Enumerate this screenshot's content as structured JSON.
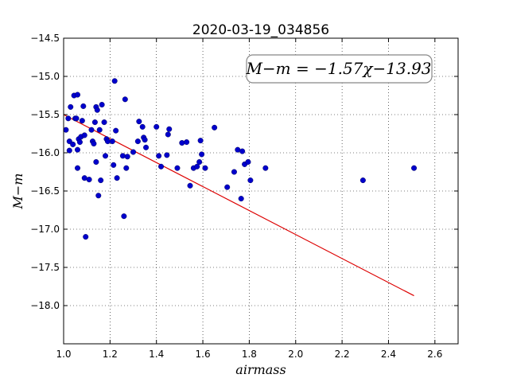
{
  "chart_data": {
    "type": "scatter",
    "title": "2020-03-19_034856",
    "xlabel": "airmass",
    "ylabel": "M−m",
    "annotation": "M−m = −1.57χ−13.93",
    "xlim": [
      1.0,
      2.7
    ],
    "ylim": [
      -18.5,
      -14.5
    ],
    "y_inverted": true,
    "grid": true,
    "x_ticks": [
      1.0,
      1.2,
      1.4,
      1.6,
      1.8,
      2.0,
      2.2,
      2.4,
      2.6
    ],
    "x_tick_labels": [
      "1.0",
      "1.2",
      "1.4",
      "1.6",
      "1.8",
      "2.0",
      "2.2",
      "2.4",
      "2.6"
    ],
    "y_ticks": [
      -14.5,
      -15.0,
      -15.5,
      -16.0,
      -16.5,
      -17.0,
      -17.5,
      -18.0
    ],
    "y_tick_labels": [
      "−14.5",
      "−15.0",
      "−15.5",
      "−16.0",
      "−16.5",
      "−17.0",
      "−17.5",
      "−18.0"
    ],
    "point_color": "#0000cc",
    "fit_color": "#dd0000",
    "fit": {
      "slope": -1.57,
      "intercept": -13.93,
      "x_range": [
        1.0,
        2.51
      ]
    },
    "points": [
      [
        1.01,
        -15.7
      ],
      [
        1.02,
        -15.55
      ],
      [
        1.025,
        -15.97
      ],
      [
        1.025,
        -15.85
      ],
      [
        1.03,
        -15.4
      ],
      [
        1.04,
        -15.89
      ],
      [
        1.045,
        -15.25
      ],
      [
        1.05,
        -15.55
      ],
      [
        1.055,
        -15.55
      ],
      [
        1.06,
        -15.24
      ],
      [
        1.06,
        -15.96
      ],
      [
        1.06,
        -16.2
      ],
      [
        1.065,
        -15.82
      ],
      [
        1.07,
        -15.86
      ],
      [
        1.075,
        -15.79
      ],
      [
        1.08,
        -15.58
      ],
      [
        1.085,
        -15.39
      ],
      [
        1.09,
        -15.77
      ],
      [
        1.09,
        -16.33
      ],
      [
        1.095,
        -17.1
      ],
      [
        1.11,
        -16.35
      ],
      [
        1.12,
        -15.7
      ],
      [
        1.125,
        -15.85
      ],
      [
        1.13,
        -15.88
      ],
      [
        1.135,
        -15.6
      ],
      [
        1.14,
        -16.12
      ],
      [
        1.14,
        -15.4
      ],
      [
        1.145,
        -15.44
      ],
      [
        1.15,
        -16.56
      ],
      [
        1.155,
        -15.7
      ],
      [
        1.16,
        -16.36
      ],
      [
        1.165,
        -15.37
      ],
      [
        1.175,
        -15.6
      ],
      [
        1.18,
        -16.04
      ],
      [
        1.185,
        -15.82
      ],
      [
        1.19,
        -15.85
      ],
      [
        1.21,
        -15.85
      ],
      [
        1.215,
        -16.16
      ],
      [
        1.22,
        -15.06
      ],
      [
        1.225,
        -15.71
      ],
      [
        1.23,
        -16.33
      ],
      [
        1.255,
        -16.04
      ],
      [
        1.26,
        -16.83
      ],
      [
        1.265,
        -15.3
      ],
      [
        1.27,
        -16.2
      ],
      [
        1.275,
        -16.05
      ],
      [
        1.3,
        -15.99
      ],
      [
        1.32,
        -15.85
      ],
      [
        1.325,
        -15.59
      ],
      [
        1.34,
        -15.66
      ],
      [
        1.345,
        -15.8
      ],
      [
        1.35,
        -15.83
      ],
      [
        1.355,
        -15.93
      ],
      [
        1.4,
        -15.66
      ],
      [
        1.41,
        -16.04
      ],
      [
        1.42,
        -16.18
      ],
      [
        1.445,
        -16.03
      ],
      [
        1.45,
        -15.76
      ],
      [
        1.455,
        -15.69
      ],
      [
        1.49,
        -16.2
      ],
      [
        1.51,
        -15.87
      ],
      [
        1.53,
        -15.86
      ],
      [
        1.545,
        -16.43
      ],
      [
        1.56,
        -16.2
      ],
      [
        1.575,
        -16.18
      ],
      [
        1.585,
        -16.12
      ],
      [
        1.59,
        -15.84
      ],
      [
        1.595,
        -16.02
      ],
      [
        1.61,
        -16.2
      ],
      [
        1.65,
        -15.67
      ],
      [
        1.705,
        -16.45
      ],
      [
        1.735,
        -16.25
      ],
      [
        1.75,
        -15.96
      ],
      [
        1.765,
        -16.6
      ],
      [
        1.77,
        -15.98
      ],
      [
        1.78,
        -16.15
      ],
      [
        1.795,
        -16.12
      ],
      [
        1.805,
        -16.36
      ],
      [
        1.87,
        -16.2
      ],
      [
        2.29,
        -16.36
      ],
      [
        2.51,
        -16.2
      ]
    ]
  }
}
